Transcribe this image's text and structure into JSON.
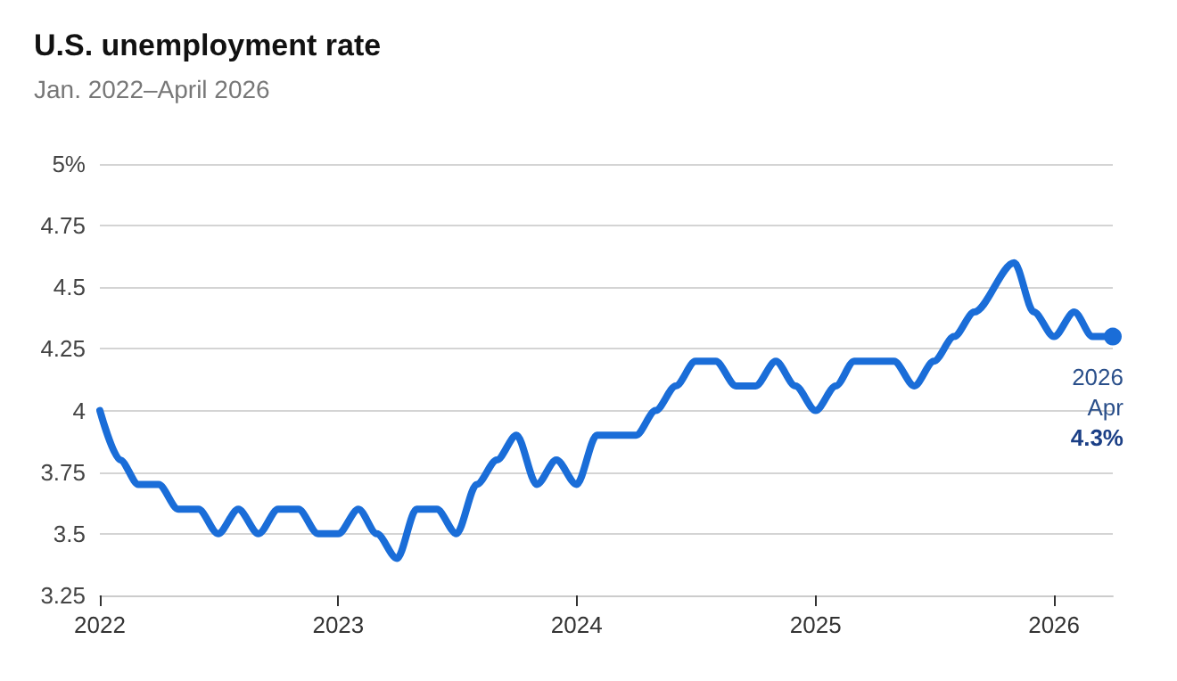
{
  "chart_data": {
    "type": "line",
    "title": "U.S. unemployment rate",
    "subtitle": "Jan. 2022–April 2026",
    "series": [
      {
        "color": "#1a6dd8",
        "x": [
          "2022-01",
          "2022-02",
          "2022-03",
          "2022-04",
          "2022-05",
          "2022-06",
          "2022-07",
          "2022-08",
          "2022-09",
          "2022-10",
          "2022-11",
          "2022-12",
          "2023-01",
          "2023-02",
          "2023-03",
          "2023-04",
          "2023-05",
          "2023-06",
          "2023-07",
          "2023-08",
          "2023-09",
          "2023-10",
          "2023-11",
          "2023-12",
          "2024-01",
          "2024-02",
          "2024-03",
          "2024-04",
          "2024-05",
          "2024-06",
          "2024-07",
          "2024-08",
          "2024-09",
          "2024-10",
          "2024-11",
          "2024-12",
          "2025-01",
          "2025-02",
          "2025-03",
          "2025-04",
          "2025-05",
          "2025-06",
          "2025-07",
          "2025-08",
          "2025-09",
          "2025-11",
          "2025-12",
          "2026-01",
          "2026-02",
          "2026-03",
          "2026-04"
        ],
        "values": [
          4.0,
          3.8,
          3.7,
          3.7,
          3.6,
          3.6,
          3.5,
          3.6,
          3.5,
          3.6,
          3.6,
          3.5,
          3.5,
          3.6,
          3.5,
          3.4,
          3.6,
          3.6,
          3.5,
          3.7,
          3.8,
          3.9,
          3.7,
          3.8,
          3.7,
          3.9,
          3.9,
          3.9,
          4.0,
          4.1,
          4.2,
          4.2,
          4.1,
          4.1,
          4.2,
          4.1,
          4.0,
          4.1,
          4.2,
          4.2,
          4.2,
          4.1,
          4.2,
          4.3,
          4.4,
          4.6,
          4.4,
          4.3,
          4.4,
          4.3,
          4.3
        ]
      }
    ],
    "xlim": [
      "2022-01",
      "2026-04"
    ],
    "xticks": [
      "2022",
      "2023",
      "2024",
      "2025",
      "2026"
    ],
    "ylim": [
      3.25,
      5
    ],
    "yticks": [
      3.25,
      3.5,
      3.75,
      4,
      4.25,
      4.5,
      4.75,
      {
        "value": 5,
        "label": "5%"
      }
    ],
    "grid": "y",
    "marker": "none",
    "line_style": "solid",
    "annotations": [
      {
        "text": "2026 Apr 4.3%",
        "x": "2026-04",
        "y": 4.3
      }
    ]
  }
}
